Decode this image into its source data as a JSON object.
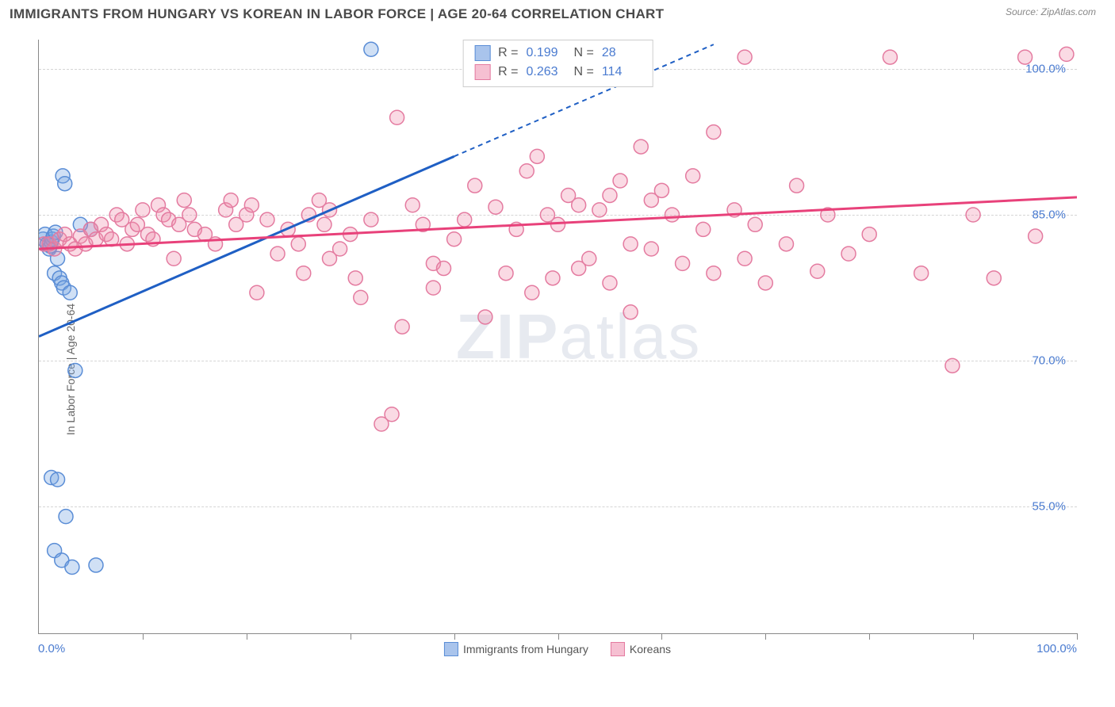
{
  "title": "IMMIGRANTS FROM HUNGARY VS KOREAN IN LABOR FORCE | AGE 20-64 CORRELATION CHART",
  "source": "Source: ZipAtlas.com",
  "y_axis_label": "In Labor Force | Age 20-64",
  "watermark_a": "ZIP",
  "watermark_b": "atlas",
  "chart": {
    "type": "scatter",
    "background_color": "#ffffff",
    "grid_color": "#d5d5d5",
    "axis_color": "#888888",
    "xlim": [
      0,
      100
    ],
    "ylim": [
      42,
      103
    ],
    "y_ticks": [
      55.0,
      70.0,
      85.0,
      100.0
    ],
    "y_tick_labels": [
      "55.0%",
      "70.0%",
      "85.0%",
      "100.0%"
    ],
    "x_ticks": [
      10,
      20,
      30,
      40,
      50,
      60,
      70,
      80,
      90,
      100
    ],
    "x_label_min": "0.0%",
    "x_label_max": "100.0%",
    "marker_radius": 9,
    "marker_stroke_width": 1.5,
    "trend_line_width": 3,
    "series": [
      {
        "name": "Immigrants from Hungary",
        "color_fill": "rgba(120,165,225,0.35)",
        "color_stroke": "#5a8dd6",
        "swatch_fill": "#a9c4ec",
        "swatch_border": "#5a8dd6",
        "R": "0.199",
        "N": "28",
        "trend": {
          "x1": 0,
          "y1": 72.5,
          "x2": 40,
          "y2": 91,
          "x2_ext": 65,
          "y2_ext": 102.5,
          "color": "#1f5fc4"
        },
        "points": [
          [
            0.4,
            82.5
          ],
          [
            0.6,
            83
          ],
          [
            0.8,
            82
          ],
          [
            1.0,
            81.5
          ],
          [
            1.1,
            81.8
          ],
          [
            1.2,
            82.2
          ],
          [
            1.3,
            82.5
          ],
          [
            1.4,
            82.8
          ],
          [
            1.6,
            83.2
          ],
          [
            1.8,
            80.5
          ],
          [
            1.5,
            79
          ],
          [
            2.0,
            78.5
          ],
          [
            2.2,
            78
          ],
          [
            2.4,
            77.5
          ],
          [
            3.0,
            77
          ],
          [
            2.3,
            89
          ],
          [
            2.5,
            88.2
          ],
          [
            3.5,
            69
          ],
          [
            1.2,
            58
          ],
          [
            1.8,
            57.8
          ],
          [
            2.6,
            54
          ],
          [
            1.5,
            50.5
          ],
          [
            2.2,
            49.5
          ],
          [
            3.2,
            48.8
          ],
          [
            5.5,
            49
          ],
          [
            32,
            102
          ],
          [
            5,
            83.5
          ],
          [
            4,
            84
          ]
        ]
      },
      {
        "name": "Koreans",
        "color_fill": "rgba(240,140,170,0.32)",
        "color_stroke": "#e47ba0",
        "swatch_fill": "#f6c0d2",
        "swatch_border": "#e47ba0",
        "R": "0.263",
        "N": "114",
        "trend": {
          "x1": 0,
          "y1": 81.5,
          "x2": 100,
          "y2": 86.8,
          "color": "#e8417a"
        },
        "points": [
          [
            0.5,
            82
          ],
          [
            1,
            82
          ],
          [
            1.5,
            81.5
          ],
          [
            2,
            82.5
          ],
          [
            2.5,
            83
          ],
          [
            3,
            82
          ],
          [
            3.5,
            81.5
          ],
          [
            4,
            82.8
          ],
          [
            4.5,
            82
          ],
          [
            5,
            83.5
          ],
          [
            5.5,
            82.5
          ],
          [
            6,
            84
          ],
          [
            6.5,
            83
          ],
          [
            7,
            82.5
          ],
          [
            7.5,
            85
          ],
          [
            8,
            84.5
          ],
          [
            8.5,
            82
          ],
          [
            9,
            83.5
          ],
          [
            9.5,
            84
          ],
          [
            10,
            85.5
          ],
          [
            10.5,
            83
          ],
          [
            11,
            82.5
          ],
          [
            11.5,
            86
          ],
          [
            12,
            85
          ],
          [
            12.5,
            84.5
          ],
          [
            13,
            80.5
          ],
          [
            13.5,
            84
          ],
          [
            14,
            86.5
          ],
          [
            14.5,
            85
          ],
          [
            15,
            83.5
          ],
          [
            16,
            83
          ],
          [
            17,
            82
          ],
          [
            18,
            85.5
          ],
          [
            18.5,
            86.5
          ],
          [
            19,
            84
          ],
          [
            20,
            85
          ],
          [
            20.5,
            86
          ],
          [
            21,
            77
          ],
          [
            22,
            84.5
          ],
          [
            23,
            81
          ],
          [
            24,
            83.5
          ],
          [
            25,
            82
          ],
          [
            25.5,
            79
          ],
          [
            26,
            85
          ],
          [
            27,
            86.5
          ],
          [
            27.5,
            84
          ],
          [
            28,
            80.5
          ],
          [
            28,
            85.5
          ],
          [
            29,
            81.5
          ],
          [
            30,
            83
          ],
          [
            30.5,
            78.5
          ],
          [
            31,
            76.5
          ],
          [
            32,
            84.5
          ],
          [
            33,
            63.5
          ],
          [
            34,
            64.5
          ],
          [
            34.5,
            95
          ],
          [
            35,
            73.5
          ],
          [
            36,
            86
          ],
          [
            37,
            84
          ],
          [
            38,
            80
          ],
          [
            38,
            77.5
          ],
          [
            39,
            79.5
          ],
          [
            40,
            82.5
          ],
          [
            41,
            84.5
          ],
          [
            42,
            88
          ],
          [
            43,
            74.5
          ],
          [
            44,
            85.8
          ],
          [
            45,
            79
          ],
          [
            46,
            83.5
          ],
          [
            47,
            89.5
          ],
          [
            47.5,
            77
          ],
          [
            48,
            91
          ],
          [
            49,
            85
          ],
          [
            49.5,
            78.5
          ],
          [
            50,
            84
          ],
          [
            51,
            87
          ],
          [
            52,
            86
          ],
          [
            52,
            79.5
          ],
          [
            53,
            80.5
          ],
          [
            54,
            85.5
          ],
          [
            55,
            87
          ],
          [
            55,
            78
          ],
          [
            56,
            88.5
          ],
          [
            57,
            82
          ],
          [
            57,
            75
          ],
          [
            58,
            92
          ],
          [
            59,
            86.5
          ],
          [
            59,
            81.5
          ],
          [
            60,
            87.5
          ],
          [
            61,
            85
          ],
          [
            62,
            80
          ],
          [
            63,
            89
          ],
          [
            64,
            83.5
          ],
          [
            65,
            79
          ],
          [
            65,
            93.5
          ],
          [
            67,
            85.5
          ],
          [
            68,
            80.5
          ],
          [
            69,
            84
          ],
          [
            70,
            78
          ],
          [
            72,
            82
          ],
          [
            73,
            88
          ],
          [
            75,
            79.2
          ],
          [
            76,
            85
          ],
          [
            78,
            81
          ],
          [
            80,
            83
          ],
          [
            82,
            101.2
          ],
          [
            85,
            79
          ],
          [
            88,
            69.5
          ],
          [
            90,
            85
          ],
          [
            92,
            78.5
          ],
          [
            95,
            101.2
          ],
          [
            96,
            82.8
          ],
          [
            99,
            101.5
          ],
          [
            68,
            101.2
          ]
        ]
      }
    ]
  },
  "legend": {
    "r_label": "R =",
    "n_label": "N ="
  }
}
